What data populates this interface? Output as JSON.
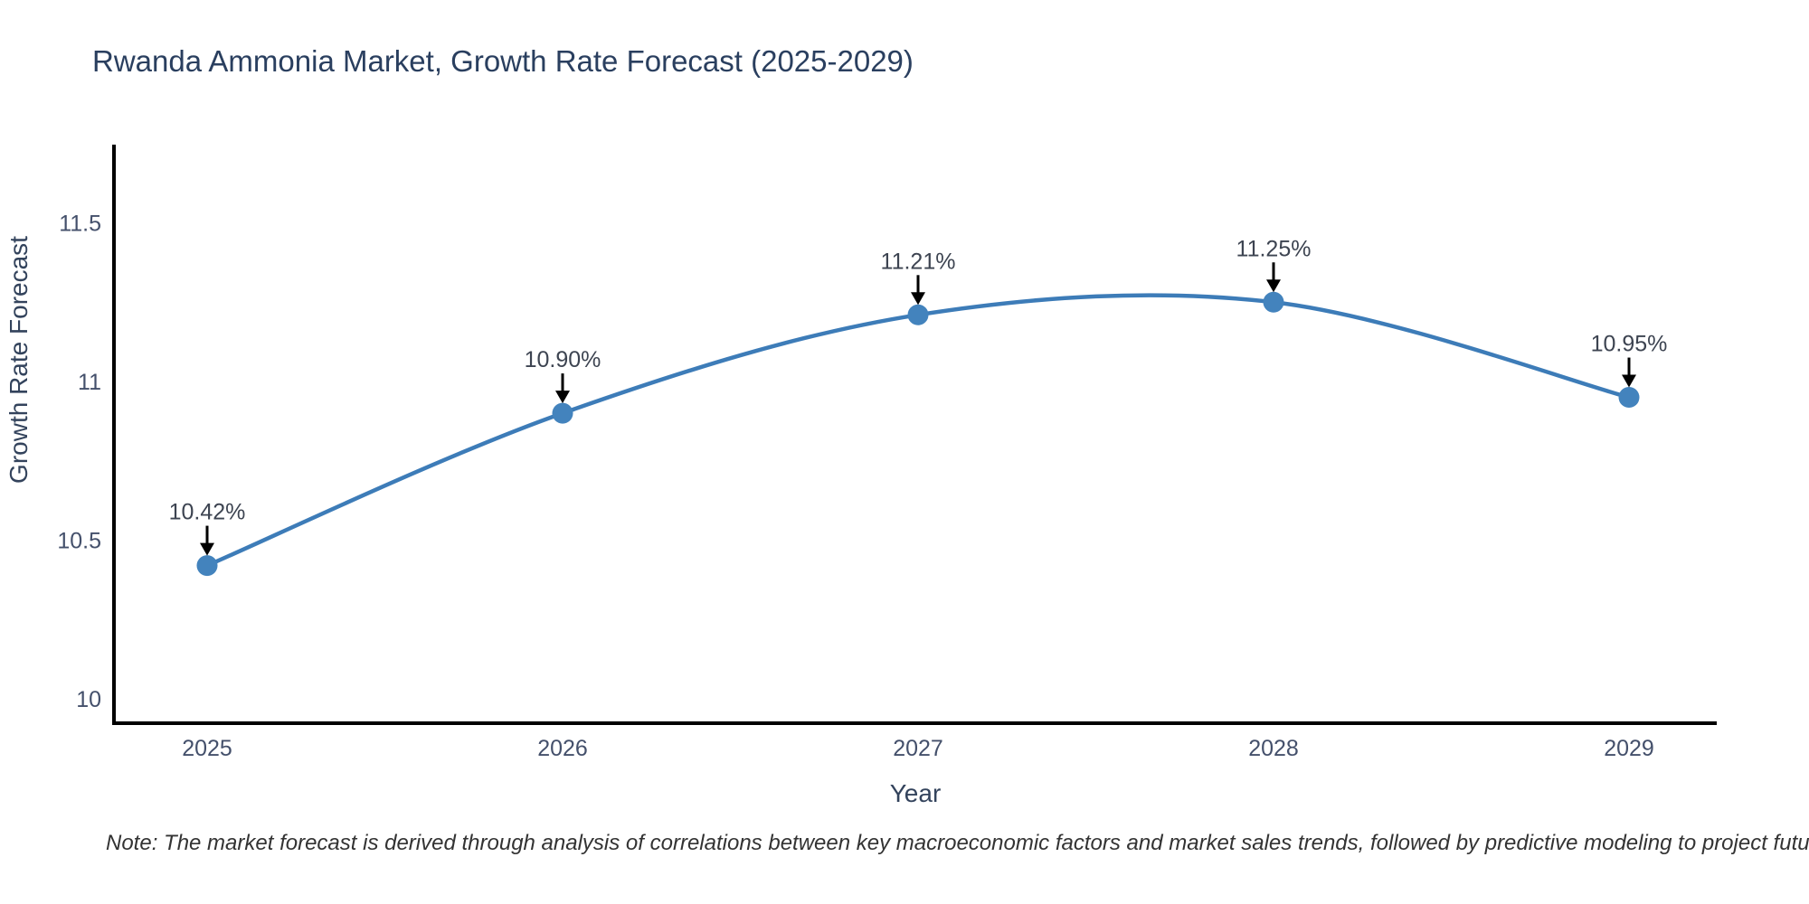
{
  "page": {
    "note": "Note: The market forecast is derived through analysis of correlations between key macroeconomic factors and market sales trends, followed by predictive modeling to project future sales."
  },
  "chart_data": {
    "type": "line",
    "title": "Rwanda Ammonia Market, Growth Rate Forecast (2025-2029)",
    "xlabel": "Year",
    "ylabel": "Growth Rate Forecast",
    "categories": [
      "2025",
      "2026",
      "2027",
      "2028",
      "2029"
    ],
    "series": [
      {
        "name": "Growth Rate Forecast",
        "values": [
          10.42,
          10.9,
          11.21,
          11.25,
          10.95
        ]
      }
    ],
    "point_labels": [
      "10.42%",
      "10.90%",
      "11.21%",
      "11.25%",
      "10.95%"
    ],
    "y_ticks": [
      {
        "label": "10",
        "value": 10.0
      },
      {
        "label": "10.5",
        "value": 10.5
      },
      {
        "label": "11",
        "value": 11.0
      },
      {
        "label": "11.5",
        "value": 11.5
      }
    ],
    "ylim": [
      9.92,
      11.75
    ],
    "line_shape": "spline",
    "grid": false,
    "legend_position": "none",
    "annotation_style": "value-label-with-down-arrow",
    "colors": {
      "line": "#3d7cb8",
      "marker": "#4383bd",
      "arrow": "#000000",
      "axis_line": "#000000",
      "title_text": "#2a3f5f",
      "tick_text": "#44506b",
      "annotation_text": "#3d4451",
      "note_text": "#333333",
      "background": "#ffffff"
    }
  }
}
